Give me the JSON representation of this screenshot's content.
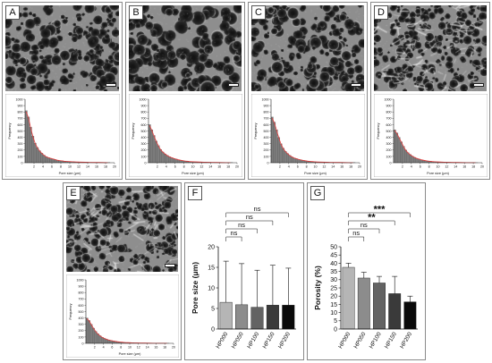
{
  "panels": {
    "A": {
      "letter": "A"
    },
    "B": {
      "letter": "B"
    },
    "C": {
      "letter": "C"
    },
    "D": {
      "letter": "D"
    },
    "E": {
      "letter": "E"
    },
    "F": {
      "letter": "F"
    },
    "G": {
      "letter": "G"
    }
  },
  "chart_data": [
    {
      "id": "A",
      "type": "bar",
      "subtype": "histogram-with-fit",
      "xlabel": "Pore size (μm)",
      "ylabel": "Frequency",
      "xlim": [
        0,
        20
      ],
      "xticks": [
        2,
        4,
        6,
        8,
        10,
        12,
        14,
        16,
        18,
        20
      ],
      "ylim": [
        0,
        1000
      ],
      "yticks": [
        0,
        100,
        200,
        300,
        400,
        500,
        600,
        700,
        800,
        900,
        1000
      ],
      "bin_width": 0.5,
      "x": [
        0.25,
        0.75,
        1.25,
        1.75,
        2.25,
        2.75,
        3.25,
        3.75,
        4.25,
        4.75,
        5.25,
        5.75,
        6.25,
        6.75,
        7.25,
        7.75,
        8.25,
        8.75,
        9.25,
        9.75,
        10.5,
        11.5,
        12.5,
        13.5,
        14.5,
        15.5,
        16.5,
        17.5,
        18.5
      ],
      "values": [
        820,
        720,
        560,
        420,
        310,
        240,
        190,
        150,
        120,
        95,
        80,
        70,
        60,
        50,
        40,
        35,
        30,
        25,
        22,
        20,
        16,
        13,
        10,
        8,
        6,
        5,
        4,
        3,
        2
      ]
    },
    {
      "id": "B",
      "type": "bar",
      "subtype": "histogram-with-fit",
      "xlabel": "Pore size (μm)",
      "ylabel": "Frequency",
      "xlim": [
        0,
        20
      ],
      "xticks": [
        2,
        4,
        6,
        8,
        10,
        12,
        14,
        16,
        18,
        20
      ],
      "ylim": [
        0,
        1000
      ],
      "yticks": [
        0,
        100,
        200,
        300,
        400,
        500,
        600,
        700,
        800,
        900,
        1000
      ],
      "bin_width": 0.5,
      "x": [
        0.25,
        0.75,
        1.25,
        1.75,
        2.25,
        2.75,
        3.25,
        3.75,
        4.25,
        4.75,
        5.25,
        5.75,
        6.25,
        6.75,
        7.25,
        7.75,
        8.25,
        8.75,
        9.25,
        9.75,
        10.5,
        11.5,
        12.5,
        13.5,
        14.5,
        15.5,
        16.5,
        17.5,
        18.5
      ],
      "values": [
        600,
        520,
        430,
        340,
        270,
        210,
        170,
        140,
        115,
        95,
        80,
        68,
        58,
        48,
        40,
        34,
        28,
        24,
        20,
        17,
        14,
        11,
        9,
        7,
        6,
        4,
        3,
        2,
        2
      ]
    },
    {
      "id": "C",
      "type": "bar",
      "subtype": "histogram-with-fit",
      "xlabel": "Pore size (μm)",
      "ylabel": "Frequency",
      "xlim": [
        0,
        20
      ],
      "xticks": [
        2,
        4,
        6,
        8,
        10,
        12,
        14,
        16,
        18,
        20
      ],
      "ylim": [
        0,
        1000
      ],
      "yticks": [
        0,
        100,
        200,
        300,
        400,
        500,
        600,
        700,
        800,
        900,
        1000
      ],
      "bin_width": 0.5,
      "x": [
        0.25,
        0.75,
        1.25,
        1.75,
        2.25,
        2.75,
        3.25,
        3.75,
        4.25,
        4.75,
        5.25,
        5.75,
        6.25,
        6.75,
        7.25,
        7.75,
        8.25,
        8.75,
        9.25,
        9.75,
        10.5,
        11.5,
        12.5,
        13.5,
        14.5,
        15.5,
        16.5,
        17.5,
        18.5
      ],
      "values": [
        720,
        640,
        520,
        400,
        300,
        230,
        180,
        145,
        115,
        92,
        76,
        64,
        54,
        45,
        38,
        32,
        26,
        22,
        19,
        16,
        13,
        10,
        8,
        6,
        5,
        4,
        3,
        2,
        2
      ]
    },
    {
      "id": "D",
      "type": "bar",
      "subtype": "histogram-with-fit",
      "xlabel": "Pore size (μm)",
      "ylabel": "Frequency",
      "xlim": [
        0,
        20
      ],
      "xticks": [
        2,
        4,
        6,
        8,
        10,
        12,
        14,
        16,
        18,
        20
      ],
      "ylim": [
        0,
        1000
      ],
      "yticks": [
        0,
        100,
        200,
        300,
        400,
        500,
        600,
        700,
        800,
        900,
        1000
      ],
      "bin_width": 0.5,
      "x": [
        0.25,
        0.75,
        1.25,
        1.75,
        2.25,
        2.75,
        3.25,
        3.75,
        4.25,
        4.75,
        5.25,
        5.75,
        6.25,
        6.75,
        7.25,
        7.75,
        8.25,
        8.75,
        9.25,
        9.75,
        10.5,
        11.5,
        12.5,
        13.5,
        14.5,
        15.5,
        16.5,
        17.5,
        18.5
      ],
      "values": [
        520,
        470,
        400,
        330,
        260,
        200,
        160,
        130,
        105,
        85,
        70,
        58,
        48,
        40,
        33,
        28,
        23,
        19,
        16,
        14,
        11,
        9,
        7,
        5,
        4,
        3,
        2,
        2,
        1
      ]
    },
    {
      "id": "E",
      "type": "bar",
      "subtype": "histogram-with-fit",
      "xlabel": "Pore size (μm)",
      "ylabel": "Frequency",
      "xlim": [
        0,
        20
      ],
      "xticks": [
        2,
        4,
        6,
        8,
        10,
        12,
        14,
        16,
        18,
        20
      ],
      "ylim": [
        0,
        1000
      ],
      "yticks": [
        0,
        100,
        200,
        300,
        400,
        500,
        600,
        700,
        800,
        900,
        1000
      ],
      "bin_width": 0.5,
      "x": [
        0.25,
        0.75,
        1.25,
        1.75,
        2.25,
        2.75,
        3.25,
        3.75,
        4.25,
        4.75,
        5.25,
        5.75,
        6.25,
        6.75,
        7.25,
        7.75,
        8.25,
        8.75,
        9.25,
        9.75,
        10.5,
        11.5,
        12.5,
        13.5,
        14.5,
        15.5,
        16.5,
        17.5,
        18.5
      ],
      "values": [
        400,
        360,
        300,
        240,
        190,
        150,
        120,
        96,
        78,
        64,
        52,
        44,
        37,
        31,
        26,
        22,
        18,
        15,
        13,
        11,
        9,
        7,
        5,
        4,
        3,
        2,
        2,
        1,
        1
      ]
    },
    {
      "id": "F",
      "type": "bar",
      "categories": [
        "HP000",
        "HP050",
        "HP100",
        "HP150",
        "HP200"
      ],
      "values": [
        6.5,
        5.9,
        5.3,
        5.8,
        5.8
      ],
      "errors": [
        10,
        10,
        9,
        9.7,
        9
      ],
      "ylabel": "Pore size (μm)",
      "ylim": [
        0,
        20
      ],
      "yticks": [
        0,
        5,
        10,
        15,
        20
      ],
      "bar_colors": [
        "#b5b5b5",
        "#8c8c8c",
        "#636363",
        "#3a3a3a",
        "#0a0a0a"
      ],
      "comparisons": [
        {
          "from": "HP000",
          "to": "HP050",
          "label": "ns"
        },
        {
          "from": "HP000",
          "to": "HP100",
          "label": "ns"
        },
        {
          "from": "HP000",
          "to": "HP150",
          "label": "ns"
        },
        {
          "from": "HP000",
          "to": "HP200",
          "label": "ns"
        }
      ]
    },
    {
      "id": "G",
      "type": "bar",
      "categories": [
        "HP000",
        "HP050",
        "HP100",
        "HP150",
        "HP200"
      ],
      "values": [
        37.5,
        31,
        28,
        21.5,
        16.5
      ],
      "errors": [
        2.5,
        3.5,
        4,
        10.5,
        3.5
      ],
      "ylabel": "Porosity (%)",
      "ylim": [
        0,
        50
      ],
      "yticks": [
        0,
        5,
        10,
        15,
        20,
        25,
        30,
        35,
        40,
        45,
        50
      ],
      "bar_colors": [
        "#b5b5b5",
        "#8c8c8c",
        "#636363",
        "#3a3a3a",
        "#0a0a0a"
      ],
      "comparisons": [
        {
          "from": "HP000",
          "to": "HP050",
          "label": "ns"
        },
        {
          "from": "HP000",
          "to": "HP100",
          "label": "ns"
        },
        {
          "from": "HP000",
          "to": "HP150",
          "label": "**"
        },
        {
          "from": "HP000",
          "to": "HP200",
          "label": "***"
        }
      ]
    }
  ]
}
